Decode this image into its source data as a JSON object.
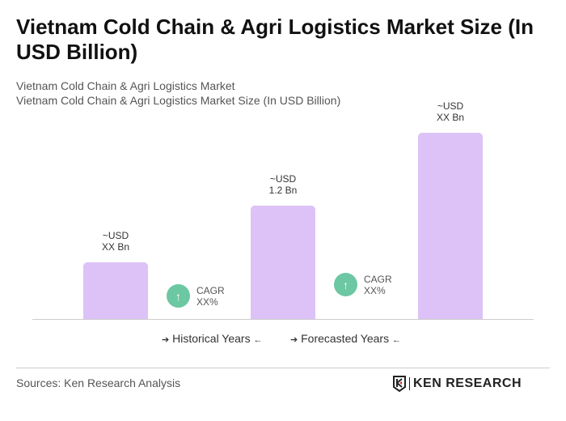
{
  "title": "Vietnam Cold Chain & Agri Logistics Market Size (In USD Billion)",
  "subtitle1": "Vietnam Cold Chain & Agri Logistics Market",
  "subtitle2": "Vietnam Cold Chain & Agri Logistics Market Size (In USD Billion)",
  "chart_data": {
    "type": "bar",
    "categories": [
      "",
      "",
      ""
    ],
    "values": [
      null,
      1.2,
      null
    ],
    "data_labels": [
      [
        "~USD",
        "XX Bn"
      ],
      [
        "~USD",
        "1.2 Bn"
      ],
      [
        "~USD",
        "XX Bn"
      ]
    ],
    "cagr": [
      {
        "label": "CAGR",
        "value": "XX%"
      },
      {
        "label": "CAGR",
        "value": "XX%"
      }
    ],
    "legend": [
      "Historical Years",
      "Forecasted Years"
    ],
    "bar_color": "#dcc2f7",
    "cagr_color": "#6cc7a3"
  },
  "sources": "Sources: Ken Research Analysis",
  "logo": "KEN RESEARCH"
}
